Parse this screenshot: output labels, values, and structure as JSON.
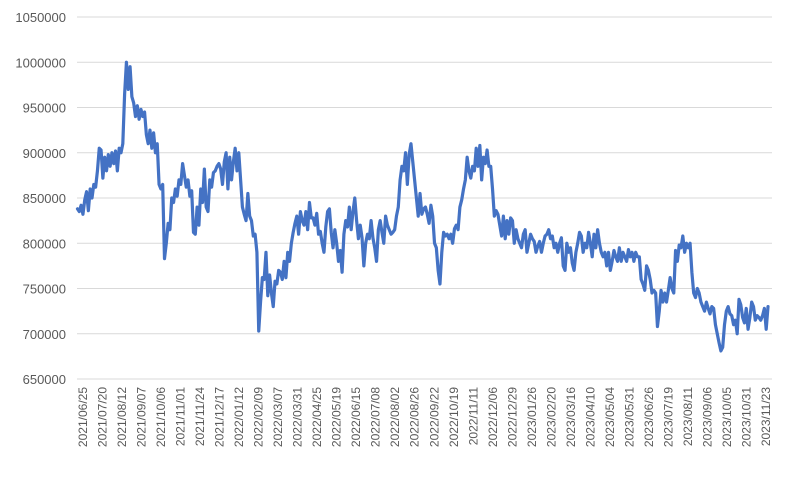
{
  "chart_data": {
    "type": "line",
    "title": "",
    "xlabel": "",
    "ylabel": "",
    "ylim": [
      650000,
      1050000
    ],
    "yticks": [
      650000,
      700000,
      750000,
      800000,
      850000,
      900000,
      950000,
      1000000,
      1050000
    ],
    "ytick_labels": [
      "650000",
      "700000",
      "750000",
      "800000",
      "850000",
      "900000",
      "950000",
      "1000000",
      "1050000"
    ],
    "xtick_labels": [
      "2021/06/25",
      "2021/07/20",
      "2021/08/12",
      "2021/09/07",
      "2021/10/06",
      "2021/11/01",
      "2021/11/24",
      "2021/12/17",
      "2022/01/12",
      "2022/02/09",
      "2022/03/07",
      "2022/03/31",
      "2022/04/25",
      "2022/05/19",
      "2022/06/15",
      "2022/07/08",
      "2022/08/02",
      "2022/08/26",
      "2022/09/22",
      "2022/10/19",
      "2022/11/11",
      "2022/12/06",
      "2022/12/29",
      "2023/01/26",
      "2023/02/20",
      "2023/03/16",
      "2023/04/10",
      "2023/05/04",
      "2023/05/31",
      "2023/06/26",
      "2023/07/19",
      "2023/08/11",
      "2023/09/06",
      "2023/10/05",
      "2023/10/31",
      "2023/11/23"
    ],
    "grid": true,
    "legend": "none",
    "series": [
      {
        "color": "#4472C4",
        "values": [
          838000,
          835000,
          842000,
          832000,
          848000,
          857000,
          836000,
          860000,
          850000,
          865000,
          862000,
          880000,
          905000,
          903000,
          872000,
          895000,
          880000,
          898000,
          885000,
          900000,
          888000,
          902000,
          880000,
          905000,
          900000,
          910000,
          965000,
          1000000,
          970000,
          995000,
          962000,
          955000,
          940000,
          952000,
          937000,
          948000,
          940000,
          945000,
          920000,
          910000,
          925000,
          905000,
          922000,
          900000,
          910000,
          865000,
          860000,
          865000,
          783000,
          800000,
          822000,
          815000,
          850000,
          845000,
          860000,
          852000,
          870000,
          865000,
          888000,
          875000,
          862000,
          870000,
          852000,
          858000,
          812000,
          810000,
          840000,
          820000,
          860000,
          845000,
          882000,
          840000,
          835000,
          870000,
          862000,
          878000,
          880000,
          885000,
          888000,
          882000,
          865000,
          890000,
          900000,
          860000,
          895000,
          870000,
          890000,
          905000,
          880000,
          900000,
          870000,
          840000,
          832000,
          825000,
          855000,
          830000,
          825000,
          808000,
          810000,
          790000,
          703000,
          735000,
          762000,
          760000,
          790000,
          742000,
          765000,
          745000,
          730000,
          758000,
          755000,
          770000,
          768000,
          760000,
          780000,
          762000,
          790000,
          780000,
          800000,
          812000,
          822000,
          830000,
          810000,
          835000,
          825000,
          820000,
          835000,
          815000,
          845000,
          828000,
          828000,
          820000,
          833000,
          810000,
          813000,
          800000,
          790000,
          818000,
          835000,
          838000,
          812000,
          795000,
          815000,
          800000,
          780000,
          792000,
          768000,
          810000,
          825000,
          818000,
          840000,
          815000,
          835000,
          850000,
          825000,
          805000,
          820000,
          806000,
          775000,
          800000,
          810000,
          805000,
          825000,
          806000,
          795000,
          780000,
          815000,
          825000,
          812000,
          800000,
          830000,
          820000,
          815000,
          810000,
          812000,
          815000,
          830000,
          840000,
          870000,
          885000,
          880000,
          900000,
          865000,
          898000,
          910000,
          890000,
          870000,
          850000,
          830000,
          855000,
          832000,
          838000,
          840000,
          832000,
          822000,
          842000,
          830000,
          800000,
          795000,
          770000,
          755000,
          790000,
          812000,
          808000,
          810000,
          805000,
          810000,
          800000,
          816000,
          820000,
          815000,
          840000,
          848000,
          860000,
          870000,
          895000,
          880000,
          872000,
          885000,
          880000,
          905000,
          885000,
          908000,
          870000,
          895000,
          888000,
          903000,
          885000,
          885000,
          860000,
          830000,
          836000,
          832000,
          820000,
          808000,
          830000,
          805000,
          825000,
          810000,
          828000,
          825000,
          800000,
          815000,
          805000,
          800000,
          795000,
          810000,
          815000,
          790000,
          800000,
          810000,
          805000,
          802000,
          790000,
          797000,
          802000,
          790000,
          800000,
          808000,
          810000,
          815000,
          805000,
          808000,
          795000,
          800000,
          790000,
          800000,
          806000,
          775000,
          770000,
          800000,
          790000,
          795000,
          778000,
          770000,
          790000,
          800000,
          812000,
          808000,
          790000,
          800000,
          795000,
          812000,
          800000,
          785000,
          810000,
          795000,
          815000,
          800000,
          790000,
          785000,
          790000,
          775000,
          790000,
          770000,
          780000,
          792000,
          785000,
          780000,
          795000,
          780000,
          790000,
          785000,
          780000,
          793000,
          785000,
          790000,
          780000,
          790000,
          785000,
          785000,
          760000,
          755000,
          748000,
          775000,
          770000,
          760000,
          745000,
          748000,
          745000,
          708000,
          725000,
          748000,
          735000,
          745000,
          735000,
          748000,
          762000,
          750000,
          745000,
          792000,
          780000,
          798000,
          795000,
          808000,
          790000,
          800000,
          795000,
          800000,
          768000,
          745000,
          740000,
          750000,
          745000,
          735000,
          730000,
          725000,
          735000,
          728000,
          722000,
          730000,
          728000,
          710000,
          700000,
          690000,
          681000,
          685000,
          710000,
          725000,
          730000,
          722000,
          720000,
          710000,
          715000,
          700000,
          738000,
          732000,
          718000,
          712000,
          728000,
          705000,
          718000,
          735000,
          730000,
          715000,
          720000,
          718000,
          715000,
          720000,
          728000,
          705000,
          730000
        ]
      }
    ]
  }
}
